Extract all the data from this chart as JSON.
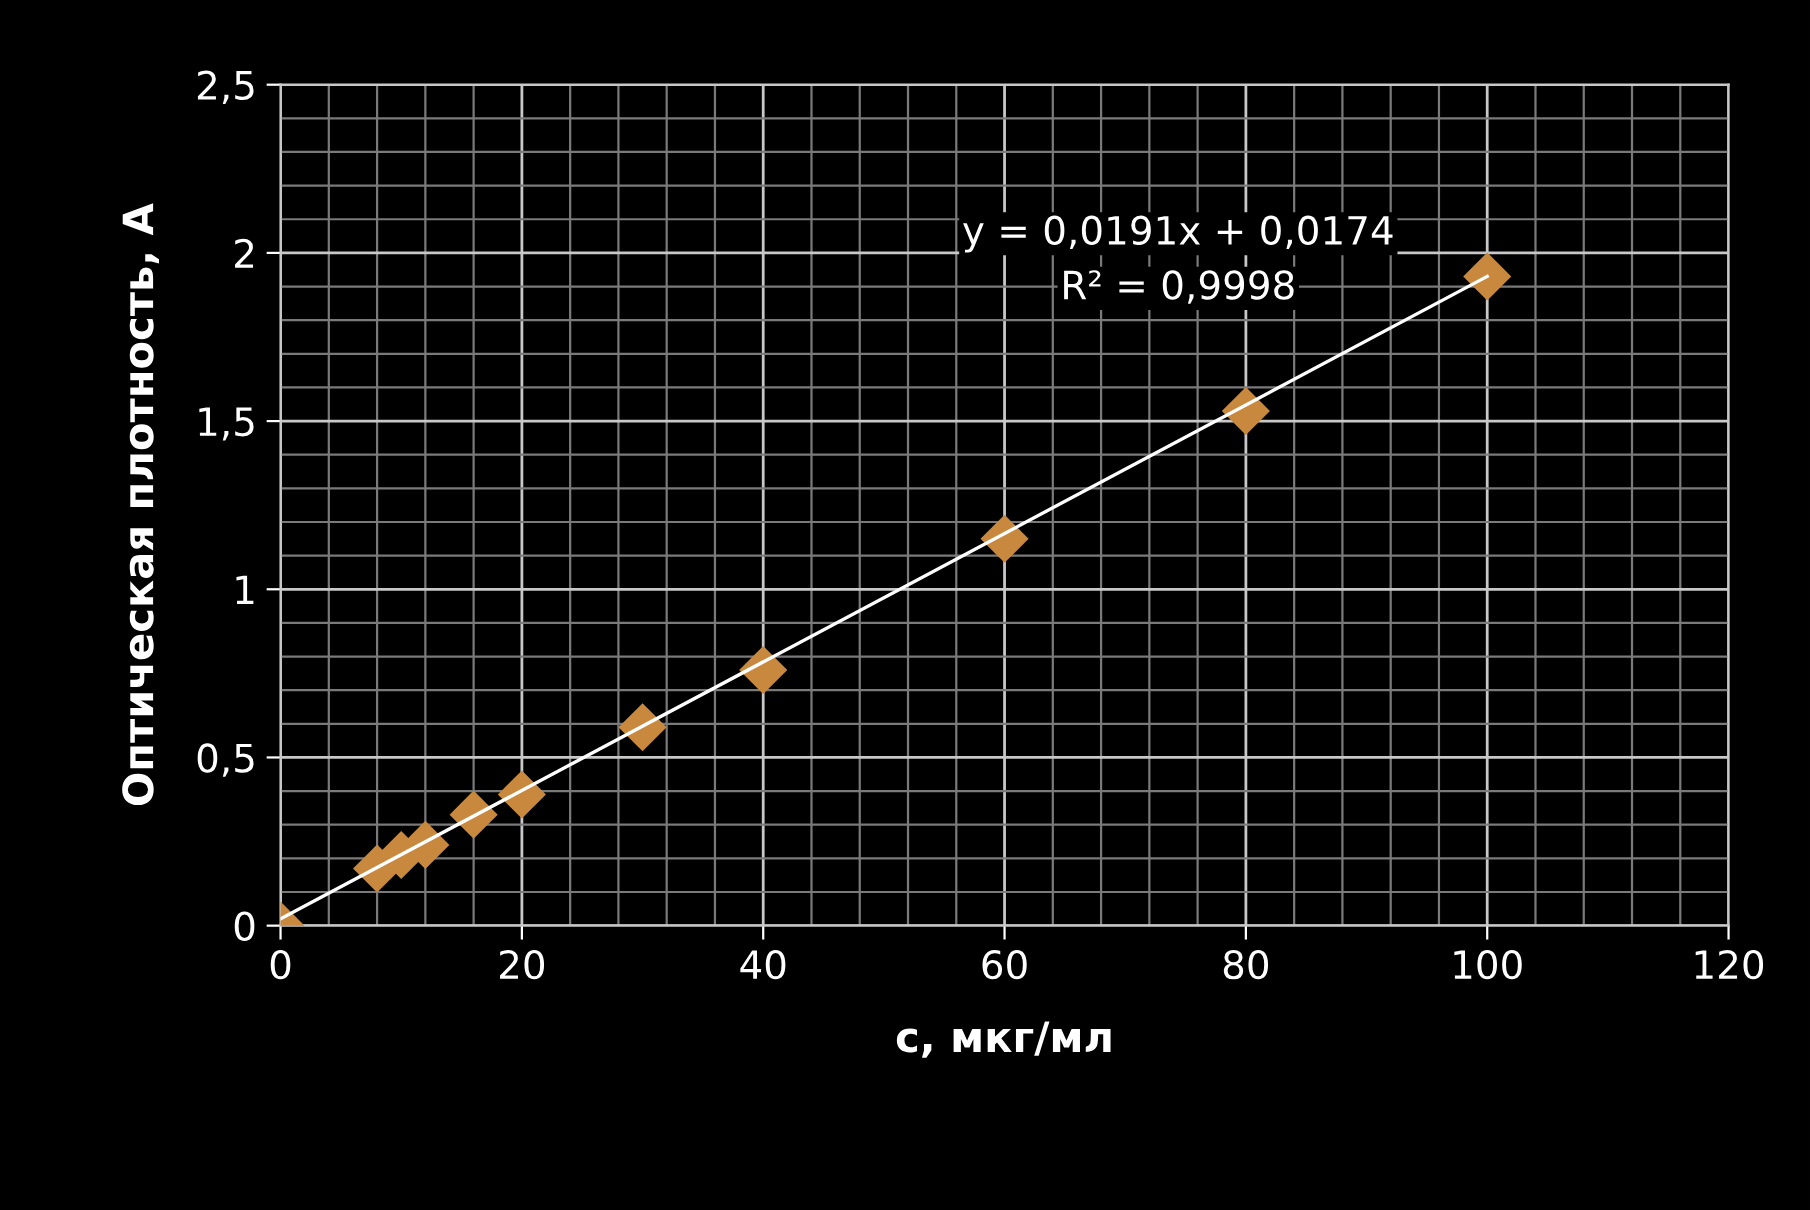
{
  "chart_data": {
    "type": "scatter",
    "xlabel": "c, мкг/мл",
    "ylabel": "Оптическая плотность, А",
    "x": [
      0,
      8,
      10,
      12,
      16,
      20,
      30,
      40,
      60,
      80,
      100
    ],
    "series": [
      {
        "color": "#c8893e",
        "marker": "diamond",
        "values": [
          0,
          0.17,
          0.21,
          0.24,
          0.33,
          0.39,
          0.59,
          0.76,
          1.15,
          1.53,
          1.93
        ]
      },
      {
        "type": "line",
        "color": "#ffffff",
        "x": [
          0,
          100
        ],
        "values": [
          0.02,
          1.93
        ]
      }
    ],
    "xlim": [
      0,
      120
    ],
    "xticks": [
      0,
      20,
      40,
      60,
      80,
      100,
      120
    ],
    "ylim": [
      0,
      2.5
    ],
    "yticks": [
      0,
      {
        "value": 0.5,
        "label": "0,5"
      },
      1,
      {
        "value": 1.5,
        "label": "1,5"
      },
      2,
      {
        "value": 2.5,
        "label": "2,5"
      }
    ],
    "grid": true,
    "annotations": [
      "y = 0,0191x + 0,0174",
      "R² = 0,9998"
    ]
  }
}
